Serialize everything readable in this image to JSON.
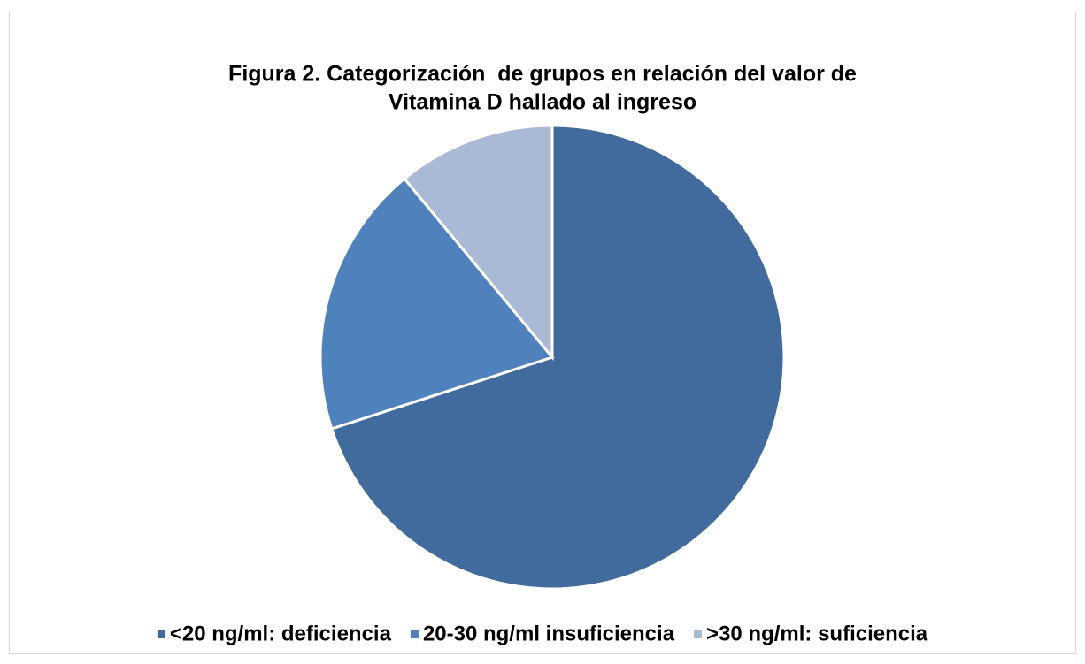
{
  "chart_data": {
    "type": "pie",
    "title": [
      "Figura 2. Categorización  de grupos en relación del valor de",
      "Vitamina D hallado al ingreso"
    ],
    "categories": [
      "<20 ng/ml: deficiencia",
      "20-30 ng/ml insuficiencia",
      ">30 ng/ml: suficiencia"
    ],
    "values": [
      70,
      19,
      11
    ],
    "colors": [
      "#416b9c",
      "#4f81bd",
      "#a9b9d6"
    ],
    "legend": "bottom"
  }
}
